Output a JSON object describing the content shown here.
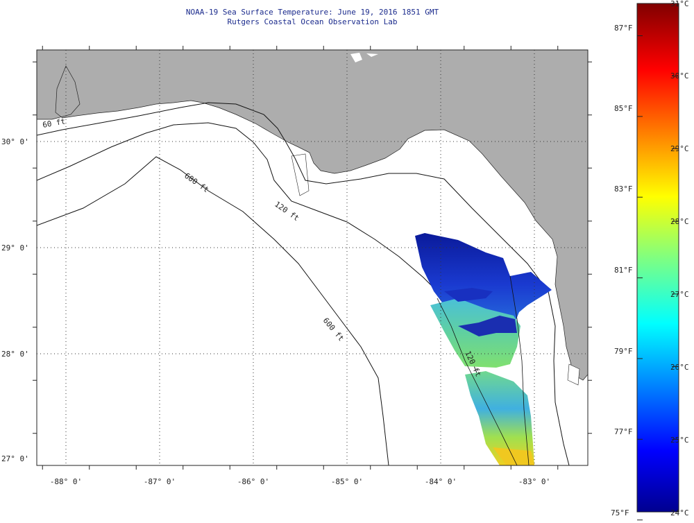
{
  "header": {
    "title_line1": "NOAA-19 Sea Surface Temperature:  June 19, 2016 1851 GMT",
    "title_line2": "Rutgers Coastal Ocean Observation Lab"
  },
  "map": {
    "lat_ticks": [
      {
        "value": 30,
        "label": "30° 0'"
      },
      {
        "value": 29,
        "label": "29° 0'"
      },
      {
        "value": 28,
        "label": "28° 0'"
      },
      {
        "value": 27,
        "label": "27° 0'"
      }
    ],
    "lon_ticks": [
      {
        "value": -88,
        "label": "-88° 0'"
      },
      {
        "value": -87,
        "label": "-87° 0'"
      },
      {
        "value": -86,
        "label": "-86° 0'"
      },
      {
        "value": -85,
        "label": "-85° 0'"
      },
      {
        "value": -84,
        "label": "-84° 0'"
      },
      {
        "value": -83,
        "label": "-83° 0'"
      }
    ],
    "depth_labels": [
      "60 ft",
      "120 ft",
      "600 ft",
      "600 ft",
      "120 ft"
    ],
    "colors": {
      "land": "#adadad",
      "ocean": "#ffffff",
      "grid": "#333333"
    }
  },
  "colorbar": {
    "celsius": [
      {
        "value": 31,
        "label": "31°C"
      },
      {
        "value": 30,
        "label": "30°C"
      },
      {
        "value": 29,
        "label": "29°C"
      },
      {
        "value": 28,
        "label": "28°C"
      },
      {
        "value": 27,
        "label": "27°C"
      },
      {
        "value": 26,
        "label": "26°C"
      },
      {
        "value": 25,
        "label": "25°C"
      },
      {
        "value": 24,
        "label": "24°C"
      }
    ],
    "fahrenheit": [
      {
        "value": 87,
        "label": "87°F"
      },
      {
        "value": 85,
        "label": "85°F"
      },
      {
        "value": 83,
        "label": "83°F"
      },
      {
        "value": 81,
        "label": "81°F"
      },
      {
        "value": 79,
        "label": "79°F"
      },
      {
        "value": 77,
        "label": "77°F"
      },
      {
        "value": 75,
        "label": "75°F"
      }
    ]
  }
}
